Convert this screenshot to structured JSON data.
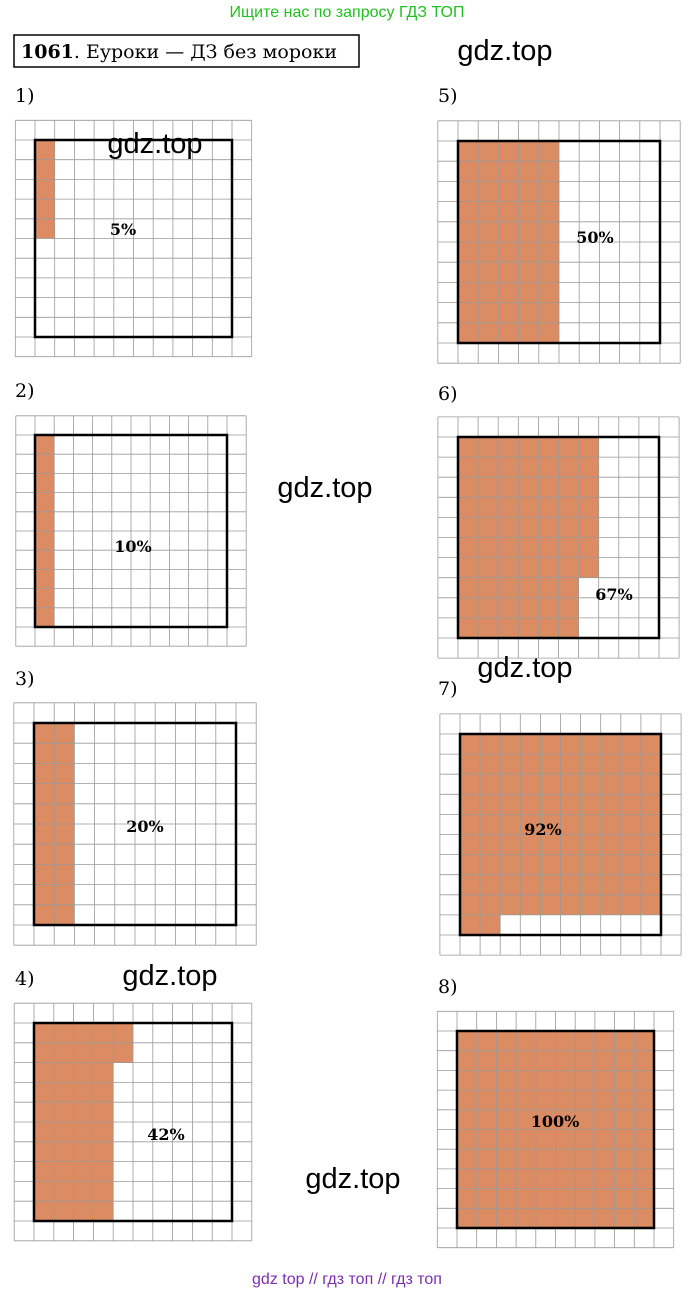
{
  "header": {
    "search": "Ищите нас по запросу ГДЗ ТОП",
    "number": "1061",
    "title": ". Еуроки — ДЗ без мороки"
  },
  "panels": [
    {
      "label": "1)",
      "percent": "5%"
    },
    {
      "label": "2)",
      "percent": "10%"
    },
    {
      "label": "3)",
      "percent": "20%"
    },
    {
      "label": "4)",
      "percent": "42%"
    },
    {
      "label": "5)",
      "percent": "50%"
    },
    {
      "label": "6)",
      "percent": "67%"
    },
    {
      "label": "7)",
      "percent": "92%"
    },
    {
      "label": "8)",
      "percent": "100%"
    }
  ],
  "watermarks": [
    "gdz.top",
    "gdz.top",
    "gdz.top",
    "gdz.top",
    "gdz.top",
    "gdz.top"
  ],
  "footer": "gdz top  //  гдз топ  //  гдз топ"
}
